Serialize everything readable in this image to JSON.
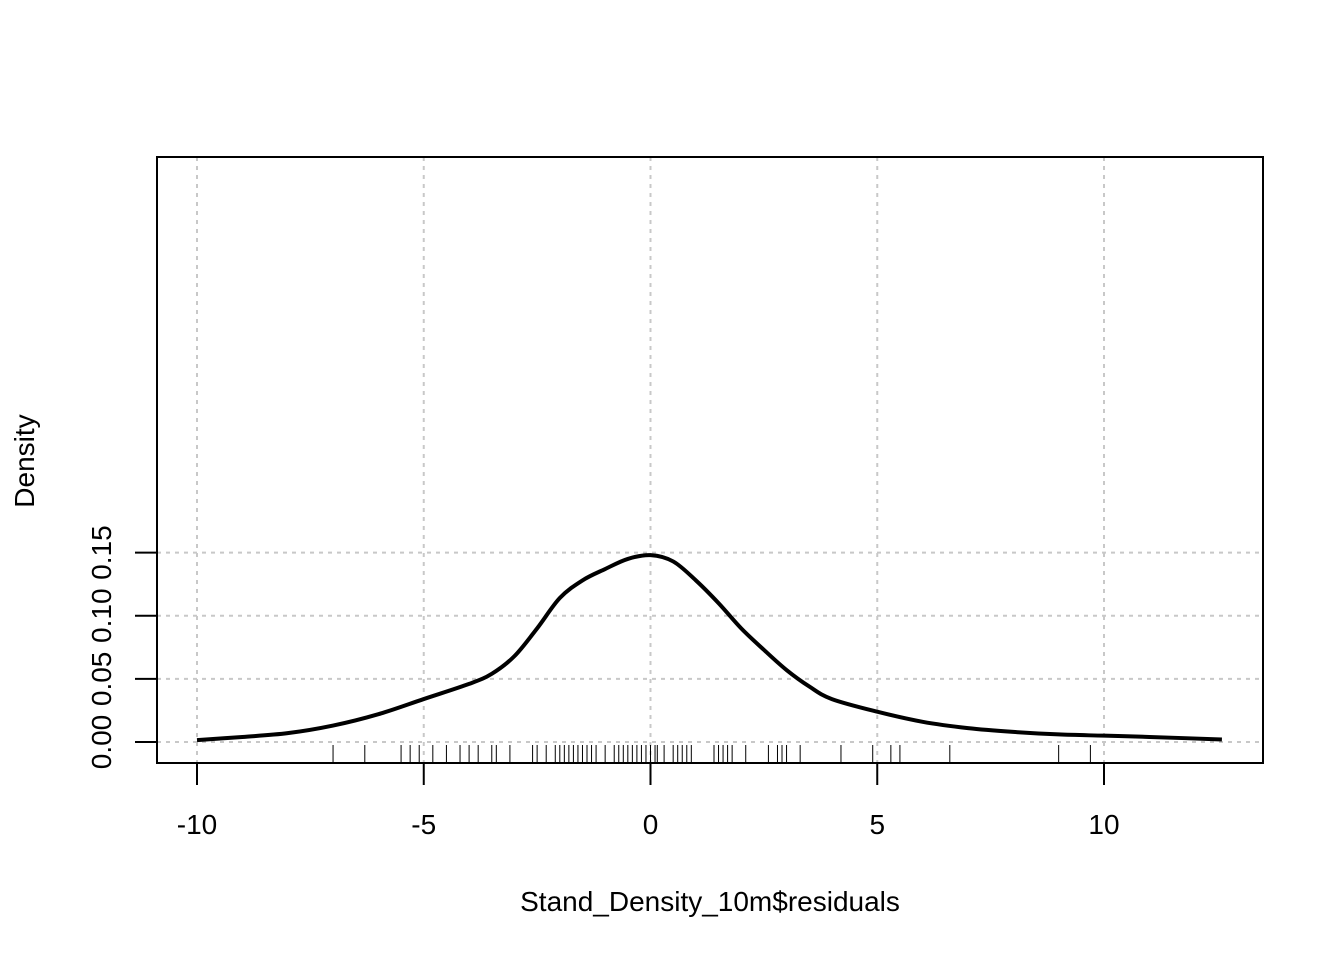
{
  "chart_data": {
    "type": "line",
    "title": "",
    "xlabel": "Stand_Density_10m$residuals",
    "ylabel": "Density",
    "xlim": [
      -10,
      12.6
    ],
    "ylim": [
      0,
      0.15
    ],
    "x_ticks": [
      -10,
      -5,
      0,
      5,
      10
    ],
    "x_tick_labels": [
      "-10",
      "-5",
      "0",
      "5",
      "10"
    ],
    "y_ticks": [
      0,
      0.05,
      0.1,
      0.15
    ],
    "y_tick_labels": [
      "0.00",
      "0.05",
      "0.10",
      "0.15"
    ],
    "grid": true,
    "series": [
      {
        "x": [
          -10,
          -9,
          -8,
          -7,
          -6,
          -5,
          -4,
          -3.5,
          -3,
          -2.5,
          -2,
          -1.5,
          -1,
          -0.5,
          0,
          0.5,
          1,
          1.5,
          2,
          2.5,
          3,
          3.5,
          4,
          5,
          6,
          7,
          8,
          9,
          10,
          11,
          12.6
        ],
        "y": [
          0.0015,
          0.004,
          0.007,
          0.013,
          0.022,
          0.034,
          0.046,
          0.054,
          0.068,
          0.09,
          0.114,
          0.128,
          0.137,
          0.145,
          0.148,
          0.143,
          0.128,
          0.11,
          0.09,
          0.073,
          0.057,
          0.044,
          0.034,
          0.024,
          0.016,
          0.011,
          0.008,
          0.006,
          0.005,
          0.004,
          0.002
        ]
      }
    ],
    "rug": [
      -7.0,
      -6.3,
      -5.5,
      -5.3,
      -5.1,
      -4.8,
      -4.5,
      -4.2,
      -4.0,
      -3.8,
      -3.5,
      -3.4,
      -3.1,
      -2.6,
      -2.5,
      -2.3,
      -2.1,
      -2.0,
      -1.9,
      -1.8,
      -1.7,
      -1.6,
      -1.5,
      -1.4,
      -1.3,
      -1.2,
      -1.0,
      -0.8,
      -0.7,
      -0.6,
      -0.5,
      -0.4,
      -0.3,
      -0.2,
      -0.1,
      0.0,
      0.1,
      0.15,
      0.3,
      0.5,
      0.6,
      0.7,
      0.8,
      0.9,
      1.4,
      1.5,
      1.6,
      1.7,
      1.8,
      2.1,
      2.6,
      2.8,
      2.9,
      3.0,
      3.3,
      4.2,
      4.9,
      5.3,
      5.5,
      6.6,
      9.0,
      9.7
    ]
  }
}
